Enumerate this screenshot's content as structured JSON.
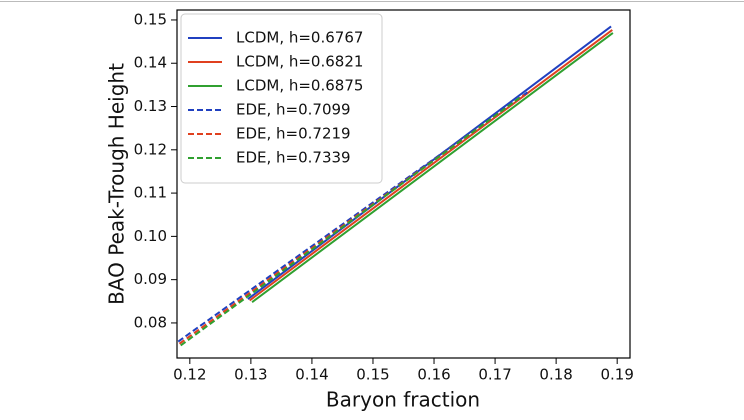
{
  "chart_data": {
    "type": "line",
    "xlabel": "Baryon fraction",
    "ylabel": "BAO Peak-Trough Height",
    "xlim": [
      0.1179,
      0.1921
    ],
    "ylim": [
      0.0719,
      0.1523
    ],
    "xticks": [
      0.12,
      0.13,
      0.14,
      0.15,
      0.16,
      0.17,
      0.18,
      0.19
    ],
    "yticks": [
      0.08,
      0.09,
      {
        "value": 0.1,
        "label": "0.10"
      },
      0.11,
      0.12,
      0.13,
      0.14,
      0.15
    ],
    "legend": "upper left",
    "series": [
      {
        "name": "LCDM, h=0.6767",
        "color": "#2040c0",
        "linestyle": "solid",
        "x": [
          0.1295,
          0.189
        ],
        "values": [
          0.0855,
          0.1485
        ]
      },
      {
        "name": "LCDM, h=0.6821",
        "color": "#e0401f",
        "linestyle": "solid",
        "x": [
          0.1298,
          0.1892
        ],
        "values": [
          0.0852,
          0.1477
        ]
      },
      {
        "name": "LCDM, h=0.6875",
        "color": "#30a030",
        "linestyle": "solid",
        "x": [
          0.1302,
          0.1893
        ],
        "values": [
          0.0848,
          0.147
        ]
      },
      {
        "name": "EDE, h=0.7099",
        "color": "#2040c0",
        "linestyle": "dashed",
        "x": [
          0.1181,
          0.1755
        ],
        "values": [
          0.0757,
          0.1335
        ]
      },
      {
        "name": "EDE, h=0.7219",
        "color": "#e0401f",
        "linestyle": "dashed",
        "x": [
          0.1183,
          0.1748
        ],
        "values": [
          0.0752,
          0.1327
        ]
      },
      {
        "name": "EDE, h=0.7339",
        "color": "#30a030",
        "linestyle": "dashed",
        "x": [
          0.1185,
          0.174
        ],
        "values": [
          0.0748,
          0.132
        ]
      }
    ]
  }
}
